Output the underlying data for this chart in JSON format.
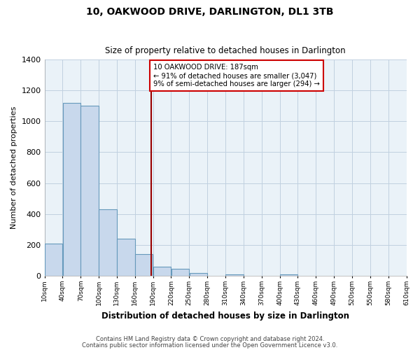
{
  "title": "10, OAKWOOD DRIVE, DARLINGTON, DL1 3TB",
  "subtitle": "Size of property relative to detached houses in Darlington",
  "xlabel": "Distribution of detached houses by size in Darlington",
  "ylabel": "Number of detached properties",
  "bar_color": "#c8d8ec",
  "bar_edge_color": "#6699bb",
  "background_color": "#ffffff",
  "plot_bg_color": "#eaf2f8",
  "grid_color": "#c0d0e0",
  "bin_edges": [
    10,
    40,
    70,
    100,
    130,
    160,
    190,
    220,
    250,
    280,
    310,
    340,
    370,
    400,
    430,
    460,
    490,
    520,
    550,
    580,
    610
  ],
  "bar_heights": [
    210,
    1120,
    1100,
    430,
    240,
    140,
    60,
    45,
    20,
    0,
    10,
    0,
    0,
    10,
    0,
    0,
    0,
    0,
    0,
    0
  ],
  "property_size": 187,
  "vline_color": "#990000",
  "annotation_text": "10 OAKWOOD DRIVE: 187sqm\n← 91% of detached houses are smaller (3,047)\n9% of semi-detached houses are larger (294) →",
  "annotation_box_color": "#ffffff",
  "annotation_box_edge": "#cc0000",
  "ylim": [
    0,
    1400
  ],
  "yticks": [
    0,
    200,
    400,
    600,
    800,
    1000,
    1200,
    1400
  ],
  "tick_labels": [
    "10sqm",
    "40sqm",
    "70sqm",
    "100sqm",
    "130sqm",
    "160sqm",
    "190sqm",
    "220sqm",
    "250sqm",
    "280sqm",
    "310sqm",
    "340sqm",
    "370sqm",
    "400sqm",
    "430sqm",
    "460sqm",
    "490sqm",
    "520sqm",
    "550sqm",
    "580sqm",
    "610sqm"
  ],
  "footer1": "Contains HM Land Registry data © Crown copyright and database right 2024.",
  "footer2": "Contains public sector information licensed under the Open Government Licence v3.0."
}
